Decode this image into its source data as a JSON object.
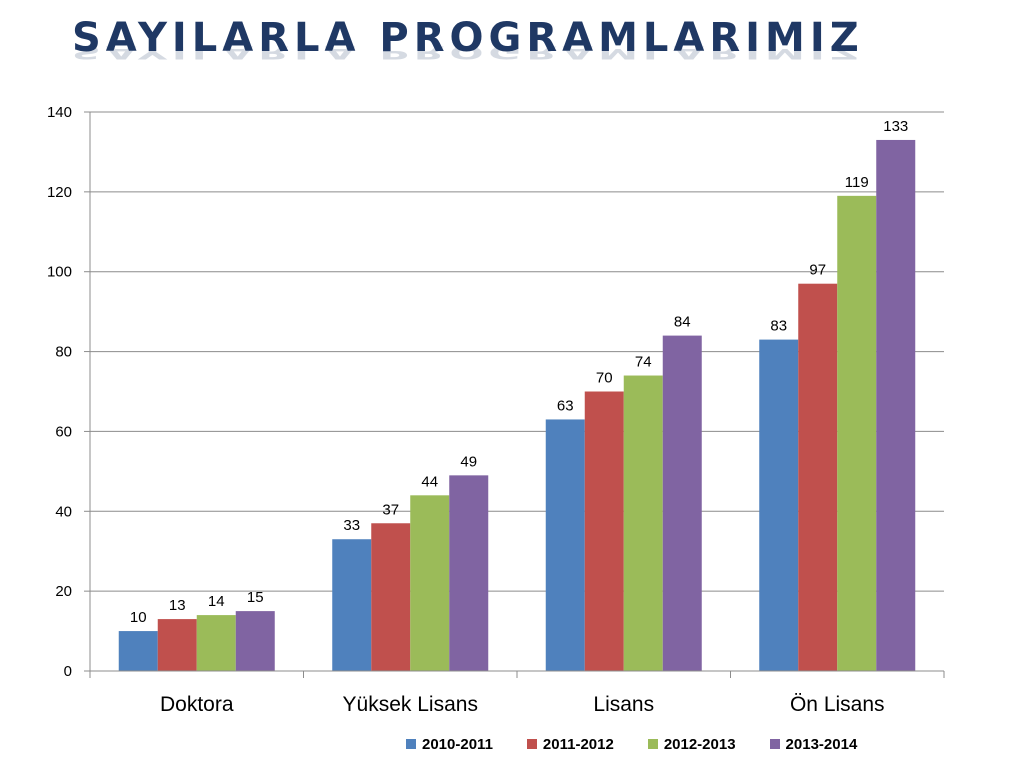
{
  "page": {
    "title": "SAYILARLA PROGRAMLARIMIZ"
  },
  "chart_data": {
    "type": "bar",
    "title": "",
    "xlabel": "",
    "ylabel": "",
    "categories": [
      "Doktora",
      "Yüksek Lisans",
      "Lisans",
      "Ön Lisans"
    ],
    "series": [
      {
        "name": "2010-2011",
        "color": "#4f81bd",
        "values": [
          10,
          33,
          63,
          83
        ]
      },
      {
        "name": "2011-2012",
        "color": "#c0504d",
        "values": [
          13,
          37,
          70,
          97
        ]
      },
      {
        "name": "2012-2013",
        "color": "#9bbb59",
        "values": [
          14,
          44,
          74,
          119
        ]
      },
      {
        "name": "2013-2014",
        "color": "#8064a2",
        "values": [
          15,
          49,
          84,
          133
        ]
      }
    ],
    "ylim": [
      0,
      140
    ],
    "yticks": [
      0,
      20,
      40,
      60,
      80,
      100,
      120,
      140
    ],
    "grid": true,
    "data_labels": true,
    "legend_position": "bottom"
  }
}
